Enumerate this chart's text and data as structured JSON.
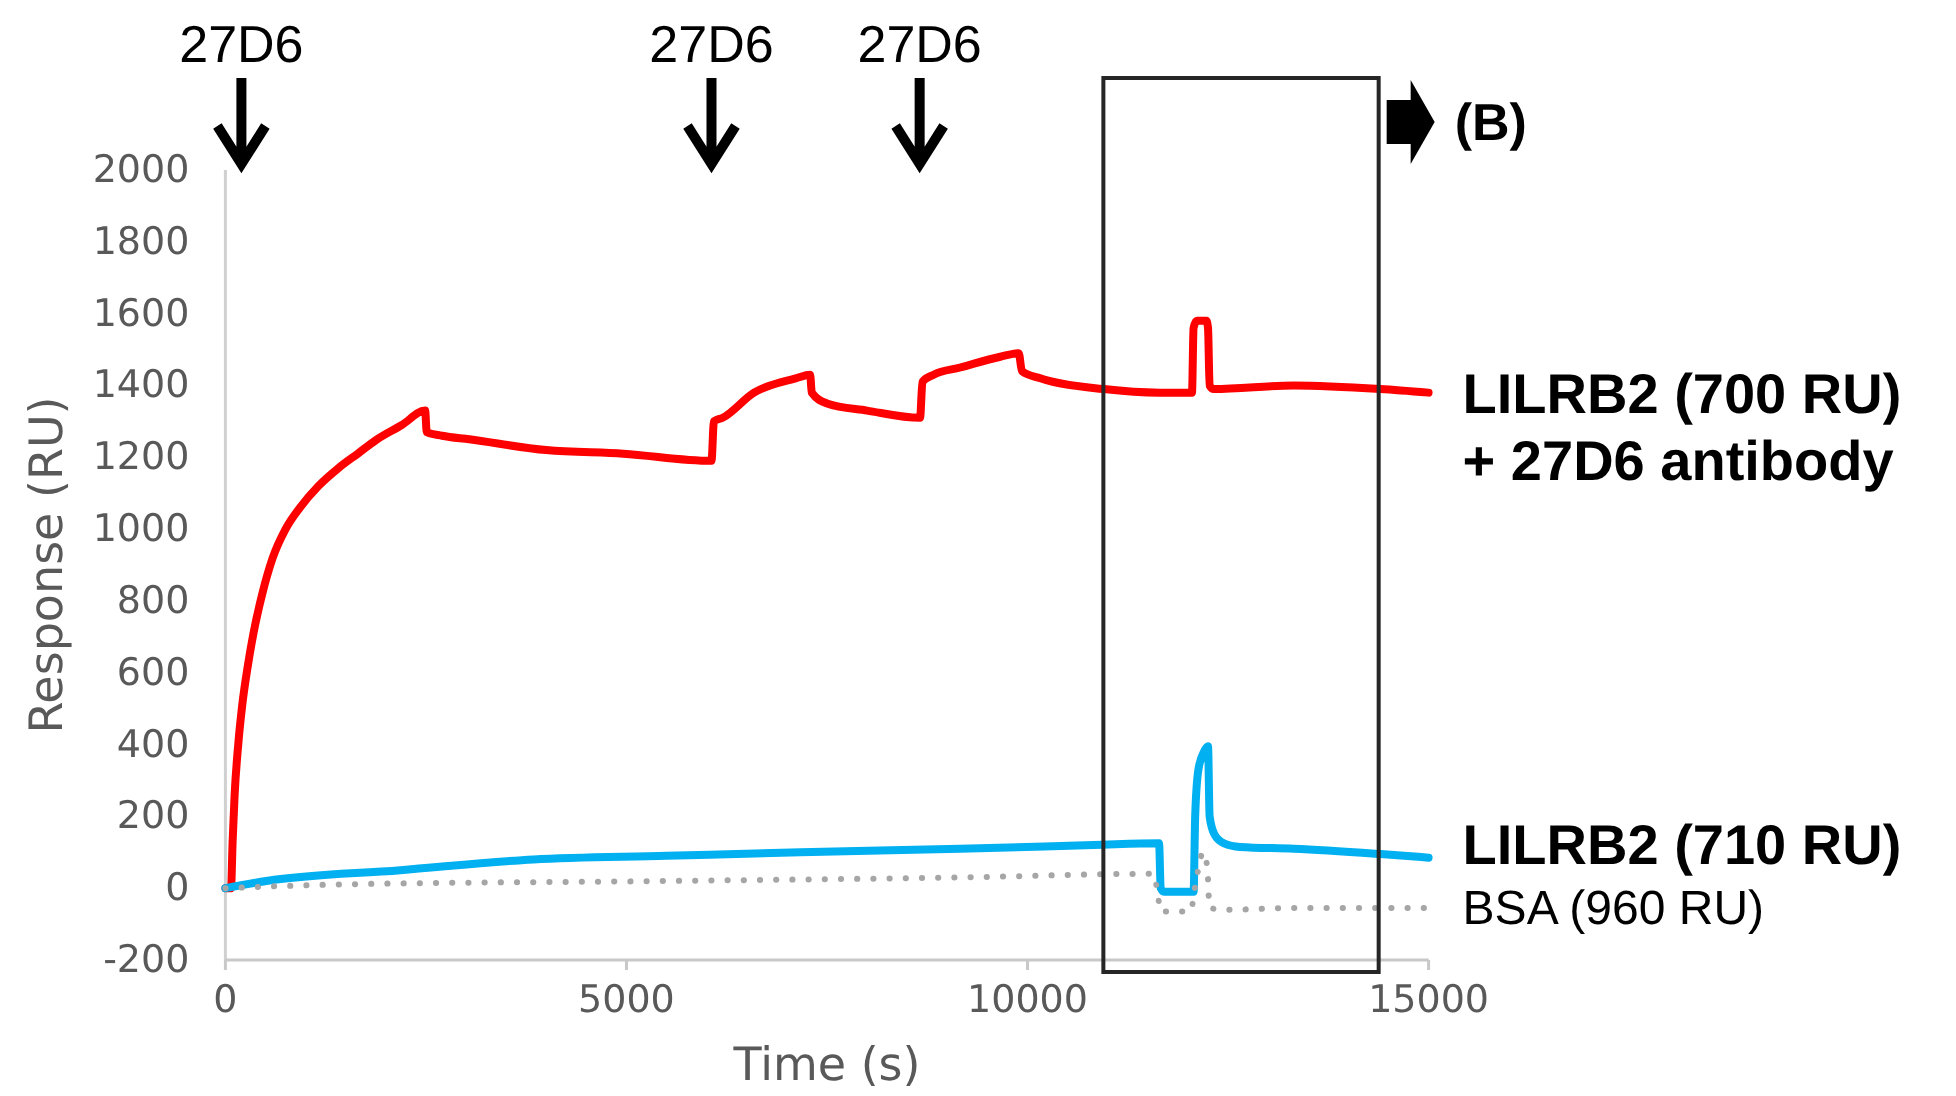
{
  "chart_data": {
    "type": "line",
    "xlabel": "Time (s)",
    "ylabel": "Response (RU)",
    "xlim": [
      0,
      15000
    ],
    "xticks": [
      0,
      5000,
      10000,
      15000
    ],
    "ylim": [
      -200,
      2000
    ],
    "yticks": [
      -200,
      0,
      200,
      400,
      600,
      800,
      1000,
      1200,
      1400,
      1600,
      1800,
      2000
    ],
    "line_style": "solid",
    "series": [
      {
        "name": "LILRB2 (700 RU)\n+ 27D6 antibody",
        "color": "#ff0000",
        "x": [
          0,
          70,
          90,
          115,
          160,
          210,
          280,
          350,
          460,
          590,
          750,
          930,
          1160,
          1410,
          1650,
          1890,
          2200,
          2490,
          2510,
          2700,
          3040,
          4000,
          4960,
          6060,
          6090,
          6200,
          6590,
          7110,
          7290,
          7310,
          7500,
          8000,
          8660,
          8690,
          8830,
          9160,
          9660,
          9890,
          9930,
          10160,
          10950,
          11650,
          12050,
          12070,
          12110,
          12230,
          12250,
          12270,
          12320,
          13320,
          14400,
          15000
        ],
        "values": [
          0,
          0,
          130,
          260,
          400,
          510,
          620,
          710,
          820,
          920,
          1000,
          1060,
          1120,
          1170,
          1210,
          1250,
          1290,
          1330,
          1270,
          1260,
          1250,
          1220,
          1210,
          1190,
          1300,
          1310,
          1380,
          1420,
          1430,
          1380,
          1350,
          1330,
          1310,
          1410,
          1430,
          1450,
          1480,
          1490,
          1440,
          1420,
          1390,
          1380,
          1380,
          1560,
          1580,
          1580,
          1560,
          1400,
          1390,
          1400,
          1390,
          1380
        ]
      },
      {
        "name": "LILRB2 (710 RU)",
        "color": "#00b0f0",
        "x": [
          0,
          510,
          2180,
          3840,
          5500,
          7170,
          9160,
          10820,
          11640,
          11660,
          11700,
          12070,
          12090,
          12130,
          12200,
          12250,
          12270,
          12330,
          12450,
          12650,
          13320,
          14400,
          15000
        ],
        "values": [
          0,
          20,
          50,
          80,
          90,
          100,
          110,
          120,
          125,
          0,
          -10,
          -10,
          200,
          330,
          380,
          395,
          200,
          150,
          125,
          115,
          110,
          95,
          85
        ]
      },
      {
        "name": "BSA (960 RU)",
        "color": "#a6a6a6",
        "line_style": "dotted",
        "x": [
          0,
          1350,
          5500,
          9160,
          11570,
          11620,
          11660,
          12030,
          12100,
          12190,
          12240,
          12270,
          12480,
          13320,
          15000
        ],
        "values": [
          0,
          10,
          20,
          30,
          40,
          -10,
          -65,
          -65,
          20,
          100,
          60,
          -55,
          -60,
          -55,
          -55
        ]
      }
    ],
    "annotations": [
      "27D6",
      "27D6",
      "27D6",
      "(B)"
    ]
  }
}
